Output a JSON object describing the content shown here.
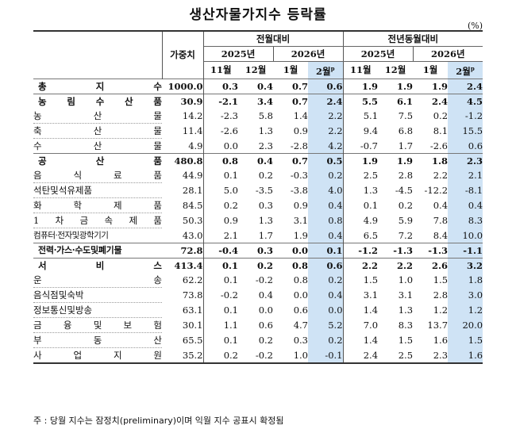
{
  "title": "생산자물가지수 등락률",
  "unit": "(%)",
  "header": {
    "weight": "가중치",
    "mom": "전월대비",
    "yoy": "전년동월대비",
    "y2025": "2025년",
    "y2026": "2026년",
    "m11": "11월",
    "m12": "12월",
    "m1": "1월",
    "m2": "2월",
    "p": "p"
  },
  "rows": [
    {
      "label": "총 지 수",
      "type": "major",
      "w": "1000.0",
      "v": [
        "0.3",
        "0.4",
        "0.7",
        "0.6",
        "1.9",
        "1.9",
        "1.9",
        "2.4"
      ]
    },
    {
      "label": "농 림 수 산 품",
      "type": "major",
      "w": "30.9",
      "v": [
        "-2.1",
        "3.4",
        "0.7",
        "2.4",
        "5.5",
        "6.1",
        "2.4",
        "4.5"
      ]
    },
    {
      "label": "농 산 물",
      "type": "sub",
      "w": "14.2",
      "v": [
        "-2.3",
        "5.8",
        "1.4",
        "2.2",
        "5.1",
        "7.5",
        "0.2",
        "-1.2"
      ]
    },
    {
      "label": "축 산 물",
      "type": "sub",
      "w": "11.4",
      "v": [
        "-2.6",
        "1.3",
        "0.9",
        "2.2",
        "9.4",
        "6.8",
        "8.1",
        "15.5"
      ]
    },
    {
      "label": "수 산 물",
      "type": "sub",
      "w": "4.9",
      "v": [
        "0.0",
        "2.3",
        "-2.8",
        "4.2",
        "-0.7",
        "1.7",
        "-2.6",
        "0.6"
      ]
    },
    {
      "label": "공 산 품",
      "type": "major",
      "w": "480.8",
      "v": [
        "0.8",
        "0.4",
        "0.7",
        "0.5",
        "1.9",
        "1.9",
        "1.8",
        "2.3"
      ]
    },
    {
      "label": "음 식 료 품",
      "type": "sub",
      "w": "44.9",
      "v": [
        "0.1",
        "0.2",
        "-0.3",
        "0.2",
        "2.5",
        "2.8",
        "2.2",
        "2.1"
      ]
    },
    {
      "label": "석탄및석유제품",
      "type": "sub",
      "w": "28.1",
      "v": [
        "5.0",
        "-3.5",
        "-3.8",
        "4.0",
        "1.3",
        "-4.5",
        "-12.2",
        "-8.1"
      ]
    },
    {
      "label": "화 학 제 품",
      "type": "sub",
      "w": "84.5",
      "v": [
        "0.2",
        "0.3",
        "0.9",
        "0.4",
        "0.1",
        "0.2",
        "0.4",
        "0.4"
      ]
    },
    {
      "label": "1 차 금 속 제 품",
      "type": "sub",
      "w": "50.3",
      "v": [
        "0.9",
        "1.3",
        "3.1",
        "0.8",
        "4.9",
        "5.9",
        "7.8",
        "8.3"
      ]
    },
    {
      "label": "컴퓨터·전자및광학기기",
      "type": "small",
      "w": "43.0",
      "v": [
        "2.1",
        "1.7",
        "1.9",
        "0.4",
        "6.5",
        "7.2",
        "8.4",
        "10.0"
      ]
    },
    {
      "label": "전력·가스·수도및폐기물",
      "type": "majorsmall",
      "w": "72.8",
      "v": [
        "-0.4",
        "0.3",
        "0.0",
        "0.1",
        "-1.2",
        "-1.3",
        "-1.3",
        "-1.1"
      ]
    },
    {
      "label": "서 비 스",
      "type": "major",
      "w": "413.4",
      "v": [
        "0.1",
        "0.2",
        "0.8",
        "0.6",
        "2.2",
        "2.2",
        "2.6",
        "3.2"
      ]
    },
    {
      "label": "운 송",
      "type": "sub",
      "w": "62.2",
      "v": [
        "0.1",
        "-0.2",
        "0.8",
        "0.2",
        "1.5",
        "1.0",
        "1.5",
        "1.8"
      ]
    },
    {
      "label": "음식점및숙박",
      "type": "sub",
      "w": "73.8",
      "v": [
        "-0.2",
        "0.4",
        "0.0",
        "0.4",
        "3.1",
        "3.1",
        "2.8",
        "3.0"
      ]
    },
    {
      "label": "정보통신및방송",
      "type": "sub",
      "w": "63.1",
      "v": [
        "0.1",
        "0.0",
        "0.6",
        "0.0",
        "1.4",
        "1.3",
        "1.2",
        "1.2"
      ]
    },
    {
      "label": "금 융 및 보 험",
      "type": "sub",
      "w": "30.1",
      "v": [
        "1.1",
        "0.6",
        "4.7",
        "5.2",
        "7.0",
        "8.3",
        "13.7",
        "20.0"
      ]
    },
    {
      "label": "부 동 산",
      "type": "sub",
      "w": "65.5",
      "v": [
        "0.1",
        "0.2",
        "0.3",
        "0.2",
        "1.4",
        "1.5",
        "1.6",
        "1.5"
      ]
    },
    {
      "label": "사 업 지 원",
      "type": "sub",
      "w": "35.2",
      "v": [
        "0.2",
        "-0.2",
        "1.0",
        "-0.1",
        "2.4",
        "2.5",
        "2.3",
        "1.6"
      ]
    }
  ],
  "footnote": "주 : 당월 지수는 잠정치(preliminary)이며 익월 지수 공표시 확정됨"
}
